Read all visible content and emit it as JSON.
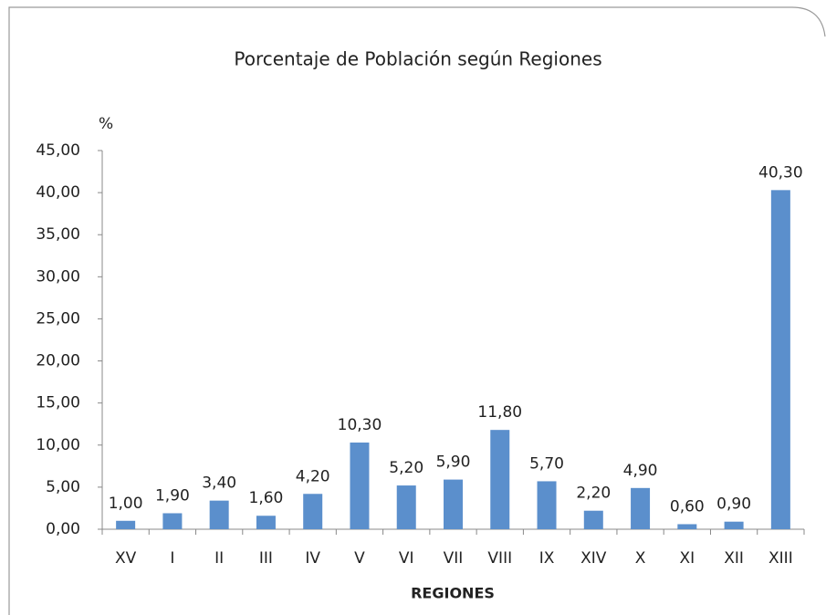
{
  "chart_data": {
    "type": "bar",
    "title": "Porcentaje de Población según Regiones",
    "y_axis_label": "%",
    "x_axis_label": "REGIONES",
    "categories": [
      "XV",
      "I",
      "II",
      "III",
      "IV",
      "V",
      "VI",
      "VII",
      "VIII",
      "IX",
      "XIV",
      "X",
      "XI",
      "XII",
      "XIII"
    ],
    "values": [
      1.0,
      1.9,
      3.4,
      1.6,
      4.2,
      10.3,
      5.2,
      5.9,
      11.8,
      5.7,
      2.2,
      4.9,
      0.6,
      0.9,
      40.3
    ],
    "value_labels": [
      "1,00",
      "1,90",
      "3,40",
      "1,60",
      "4,20",
      "10,30",
      "5,20",
      "5,90",
      "11,80",
      "5,70",
      "2,20",
      "4,90",
      "0,60",
      "0,90",
      "40,30"
    ],
    "color": "#5b8fcc",
    "ylim": [
      0,
      45
    ],
    "yticks": [
      {
        "value": 0,
        "label": "0,00"
      },
      {
        "value": 5,
        "label": "5,00"
      },
      {
        "value": 10,
        "label": "10,00"
      },
      {
        "value": 15,
        "label": "15,00"
      },
      {
        "value": 20,
        "label": "20,00"
      },
      {
        "value": 25,
        "label": "25,00"
      },
      {
        "value": 30,
        "label": "30,00"
      },
      {
        "value": 35,
        "label": "35,00"
      },
      {
        "value": 40,
        "label": "40,00"
      },
      {
        "value": 45,
        "label": "45,00"
      }
    ],
    "grid": false
  }
}
